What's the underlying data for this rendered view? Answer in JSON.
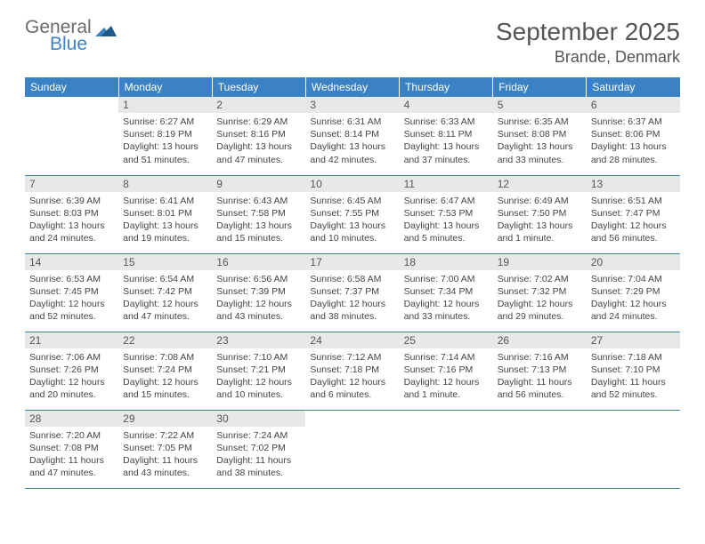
{
  "brand": {
    "line1": "General",
    "line2": "Blue",
    "text_color": "#6b6b6b",
    "accent_color": "#3b82c4"
  },
  "title": "September 2025",
  "location": "Brande, Denmark",
  "header_bg": "#3b82c4",
  "header_fg": "#ffffff",
  "daynum_bg": "#e8e8e8",
  "border_color": "#3b82c4",
  "text_color": "#444444",
  "weekdays": [
    "Sunday",
    "Monday",
    "Tuesday",
    "Wednesday",
    "Thursday",
    "Friday",
    "Saturday"
  ],
  "weeks": [
    [
      null,
      {
        "n": "1",
        "sunrise": "6:27 AM",
        "sunset": "8:19 PM",
        "daylight": "13 hours and 51 minutes."
      },
      {
        "n": "2",
        "sunrise": "6:29 AM",
        "sunset": "8:16 PM",
        "daylight": "13 hours and 47 minutes."
      },
      {
        "n": "3",
        "sunrise": "6:31 AM",
        "sunset": "8:14 PM",
        "daylight": "13 hours and 42 minutes."
      },
      {
        "n": "4",
        "sunrise": "6:33 AM",
        "sunset": "8:11 PM",
        "daylight": "13 hours and 37 minutes."
      },
      {
        "n": "5",
        "sunrise": "6:35 AM",
        "sunset": "8:08 PM",
        "daylight": "13 hours and 33 minutes."
      },
      {
        "n": "6",
        "sunrise": "6:37 AM",
        "sunset": "8:06 PM",
        "daylight": "13 hours and 28 minutes."
      }
    ],
    [
      {
        "n": "7",
        "sunrise": "6:39 AM",
        "sunset": "8:03 PM",
        "daylight": "13 hours and 24 minutes."
      },
      {
        "n": "8",
        "sunrise": "6:41 AM",
        "sunset": "8:01 PM",
        "daylight": "13 hours and 19 minutes."
      },
      {
        "n": "9",
        "sunrise": "6:43 AM",
        "sunset": "7:58 PM",
        "daylight": "13 hours and 15 minutes."
      },
      {
        "n": "10",
        "sunrise": "6:45 AM",
        "sunset": "7:55 PM",
        "daylight": "13 hours and 10 minutes."
      },
      {
        "n": "11",
        "sunrise": "6:47 AM",
        "sunset": "7:53 PM",
        "daylight": "13 hours and 5 minutes."
      },
      {
        "n": "12",
        "sunrise": "6:49 AM",
        "sunset": "7:50 PM",
        "daylight": "13 hours and 1 minute."
      },
      {
        "n": "13",
        "sunrise": "6:51 AM",
        "sunset": "7:47 PM",
        "daylight": "12 hours and 56 minutes."
      }
    ],
    [
      {
        "n": "14",
        "sunrise": "6:53 AM",
        "sunset": "7:45 PM",
        "daylight": "12 hours and 52 minutes."
      },
      {
        "n": "15",
        "sunrise": "6:54 AM",
        "sunset": "7:42 PM",
        "daylight": "12 hours and 47 minutes."
      },
      {
        "n": "16",
        "sunrise": "6:56 AM",
        "sunset": "7:39 PM",
        "daylight": "12 hours and 43 minutes."
      },
      {
        "n": "17",
        "sunrise": "6:58 AM",
        "sunset": "7:37 PM",
        "daylight": "12 hours and 38 minutes."
      },
      {
        "n": "18",
        "sunrise": "7:00 AM",
        "sunset": "7:34 PM",
        "daylight": "12 hours and 33 minutes."
      },
      {
        "n": "19",
        "sunrise": "7:02 AM",
        "sunset": "7:32 PM",
        "daylight": "12 hours and 29 minutes."
      },
      {
        "n": "20",
        "sunrise": "7:04 AM",
        "sunset": "7:29 PM",
        "daylight": "12 hours and 24 minutes."
      }
    ],
    [
      {
        "n": "21",
        "sunrise": "7:06 AM",
        "sunset": "7:26 PM",
        "daylight": "12 hours and 20 minutes."
      },
      {
        "n": "22",
        "sunrise": "7:08 AM",
        "sunset": "7:24 PM",
        "daylight": "12 hours and 15 minutes."
      },
      {
        "n": "23",
        "sunrise": "7:10 AM",
        "sunset": "7:21 PM",
        "daylight": "12 hours and 10 minutes."
      },
      {
        "n": "24",
        "sunrise": "7:12 AM",
        "sunset": "7:18 PM",
        "daylight": "12 hours and 6 minutes."
      },
      {
        "n": "25",
        "sunrise": "7:14 AM",
        "sunset": "7:16 PM",
        "daylight": "12 hours and 1 minute."
      },
      {
        "n": "26",
        "sunrise": "7:16 AM",
        "sunset": "7:13 PM",
        "daylight": "11 hours and 56 minutes."
      },
      {
        "n": "27",
        "sunrise": "7:18 AM",
        "sunset": "7:10 PM",
        "daylight": "11 hours and 52 minutes."
      }
    ],
    [
      {
        "n": "28",
        "sunrise": "7:20 AM",
        "sunset": "7:08 PM",
        "daylight": "11 hours and 47 minutes."
      },
      {
        "n": "29",
        "sunrise": "7:22 AM",
        "sunset": "7:05 PM",
        "daylight": "11 hours and 43 minutes."
      },
      {
        "n": "30",
        "sunrise": "7:24 AM",
        "sunset": "7:02 PM",
        "daylight": "11 hours and 38 minutes."
      },
      null,
      null,
      null,
      null
    ]
  ],
  "labels": {
    "sunrise": "Sunrise:",
    "sunset": "Sunset:",
    "daylight": "Daylight:"
  }
}
